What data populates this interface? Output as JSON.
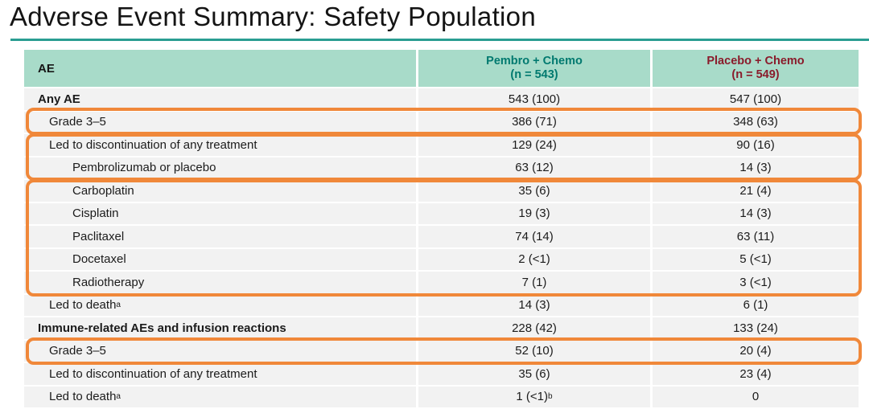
{
  "slide": {
    "title": "Adverse Event Summary: Safety Population"
  },
  "table": {
    "header": {
      "ae": "AE",
      "pembro_line1": "Pembro + Chemo",
      "pembro_line2": "(n = 543)",
      "placebo_line1": "Placebo + Chemo",
      "placebo_line2": "(n = 549)"
    },
    "rows": [
      {
        "label": "Any AE",
        "pembro": "543 (100)",
        "placebo": "547 (100)"
      },
      {
        "label": "Grade 3–5",
        "pembro": "386 (71)",
        "placebo": "348 (63)"
      },
      {
        "label": "Led to discontinuation of any treatment",
        "pembro": "129 (24)",
        "placebo": "90 (16)"
      },
      {
        "label": "Pembrolizumab or placebo",
        "pembro": "63 (12)",
        "placebo": "14 (3)"
      },
      {
        "label": "Carboplatin",
        "pembro": "35 (6)",
        "placebo": "21 (4)"
      },
      {
        "label": "Cisplatin",
        "pembro": "19 (3)",
        "placebo": "14 (3)"
      },
      {
        "label": "Paclitaxel",
        "pembro": "74 (14)",
        "placebo": "63 (11)"
      },
      {
        "label": "Docetaxel",
        "pembro": "2 (<1)",
        "placebo": "5 (<1)"
      },
      {
        "label": "Radiotherapy",
        "pembro": "7 (1)",
        "placebo": "3 (<1)"
      },
      {
        "label": "Led to death",
        "label_sup": "a",
        "pembro": "14 (3)",
        "placebo": "6 (1)"
      },
      {
        "label": "Immune-related AEs and infusion reactions",
        "pembro": "228 (42)",
        "placebo": "133 (24)"
      },
      {
        "label": "Grade 3–5",
        "pembro": "52 (10)",
        "placebo": "20 (4)"
      },
      {
        "label": "Led to discontinuation of any treatment",
        "pembro": "35 (6)",
        "placebo": "23 (4)"
      },
      {
        "label": "Led to death",
        "label_sup": "a",
        "pembro": "1 (<1)",
        "pembro_sup": "b",
        "placebo": "0"
      }
    ]
  },
  "highlights": {
    "boxes": [
      "any-ae-grade-3-5",
      "discontinuation-and-pembro-placebo",
      "chemo-agents",
      "irae-grade-3-5"
    ]
  },
  "colors": {
    "header_bg": "#A8DBC9",
    "pembro": "#00796F",
    "placebo": "#8A1B2B",
    "orange": "#F0883A",
    "rule_teal": "#2A9D92",
    "row_bg": "#F2F2F2"
  }
}
